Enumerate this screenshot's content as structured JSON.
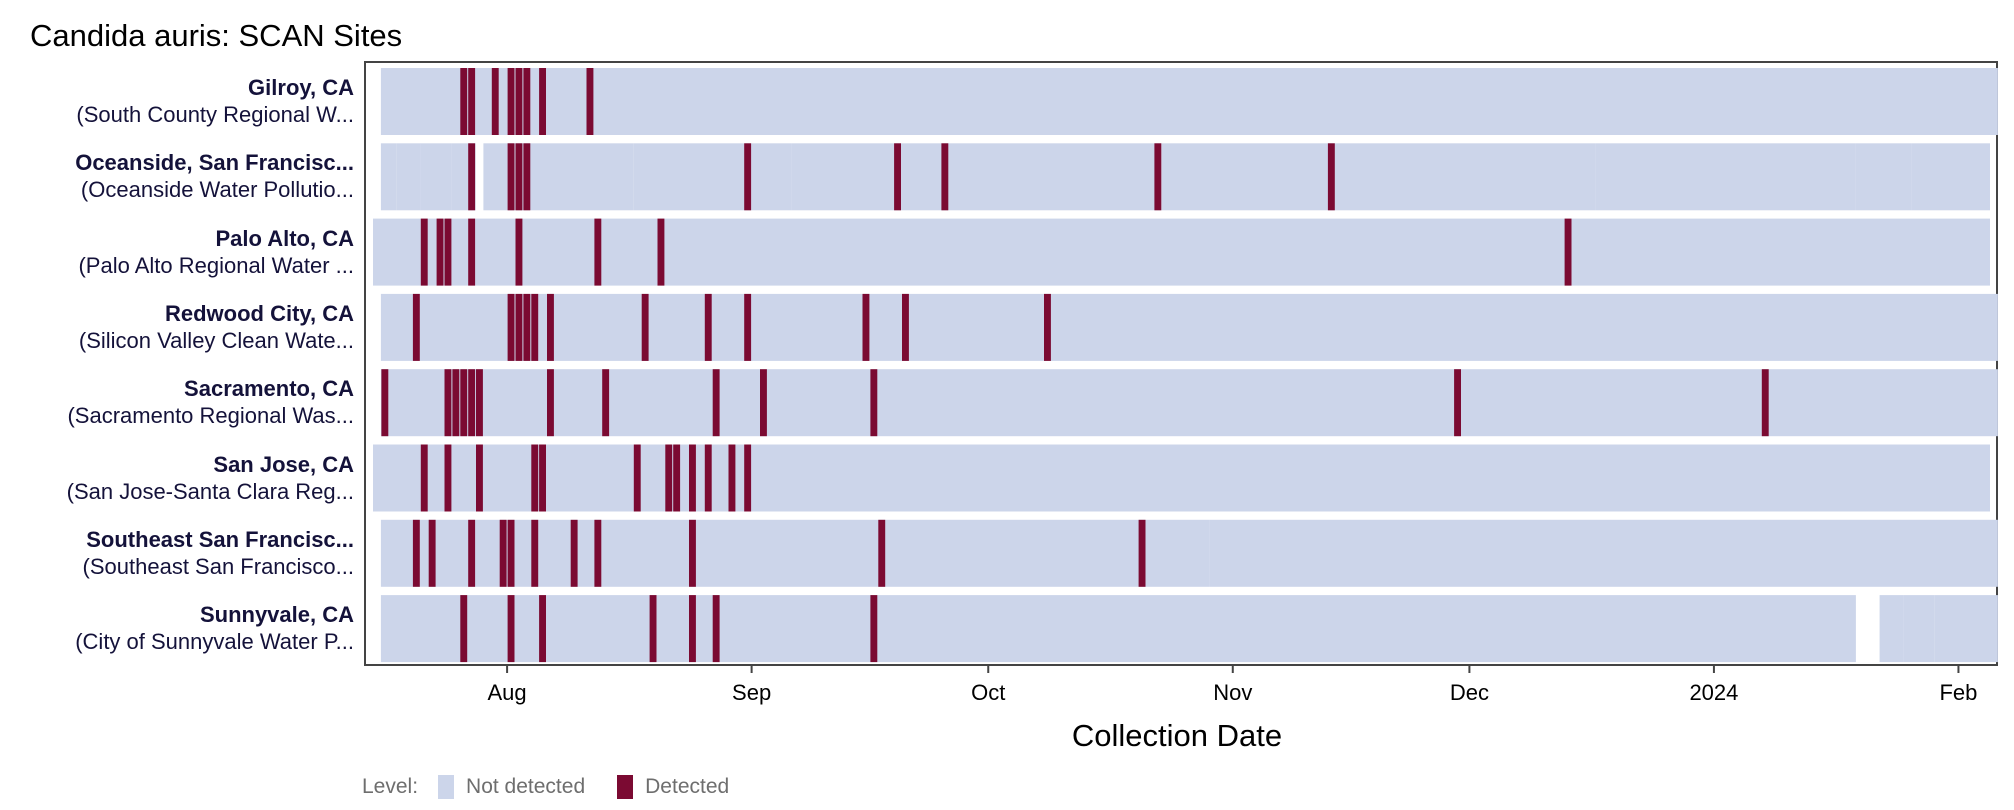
{
  "chart_data": {
    "type": "heatmap",
    "title": "Candida auris: SCAN Sites",
    "xlabel": "Collection Date",
    "ylabel": "",
    "x_range": [
      "2023-07-15",
      "2024-02-05"
    ],
    "x_ticks": [
      {
        "label": "Aug",
        "date": "2023-08-01"
      },
      {
        "label": "Sep",
        "date": "2023-09-01"
      },
      {
        "label": "Oct",
        "date": "2023-10-01"
      },
      {
        "label": "Nov",
        "date": "2023-11-01"
      },
      {
        "label": "Dec",
        "date": "2023-12-01"
      },
      {
        "label": "2024",
        "date": "2024-01-01"
      },
      {
        "label": "Feb",
        "date": "2024-02-01"
      }
    ],
    "legend": {
      "title": "Level:",
      "position": "bottom-left",
      "items": [
        {
          "label": "Not detected",
          "color": "#ccd5ea"
        },
        {
          "label": "Detected",
          "color": "#7b0a32"
        }
      ]
    },
    "sites": [
      {
        "name": "Gilroy, CA",
        "facility": "(South County Regional W...",
        "coverage": [
          [
            "2023-07-16",
            "2024-02-05"
          ]
        ],
        "detected": [
          "2023-07-26",
          "2023-07-27",
          "2023-07-30",
          "2023-08-01",
          "2023-08-02",
          "2023-08-03",
          "2023-08-05",
          "2023-08-11"
        ]
      },
      {
        "name": "Oceanside, San Francisc...",
        "facility": "(Oceanside Water Pollutio...",
        "coverage": [
          [
            "2023-07-16",
            "2023-07-17"
          ],
          [
            "2023-07-18",
            "2023-07-20"
          ],
          [
            "2023-07-21",
            "2023-07-24"
          ],
          [
            "2023-07-25",
            "2023-07-27"
          ],
          [
            "2023-07-29",
            "2023-08-16"
          ],
          [
            "2023-08-17",
            "2023-09-05"
          ],
          [
            "2023-09-06",
            "2023-10-22"
          ],
          [
            "2023-10-23",
            "2023-11-25"
          ],
          [
            "2023-11-26",
            "2023-12-16"
          ],
          [
            "2023-12-17",
            "2024-01-18"
          ],
          [
            "2024-01-19",
            "2024-01-25"
          ],
          [
            "2024-01-26",
            "2024-02-04"
          ]
        ],
        "detected": [
          "2023-07-27",
          "2023-08-01",
          "2023-08-02",
          "2023-08-03",
          "2023-08-31",
          "2023-09-19",
          "2023-09-25",
          "2023-10-22",
          "2023-11-13"
        ]
      },
      {
        "name": "Palo Alto, CA",
        "facility": "(Palo Alto Regional Water ...",
        "coverage": [
          [
            "2023-07-15",
            "2023-09-14"
          ],
          [
            "2023-09-15",
            "2024-02-04"
          ]
        ],
        "detected": [
          "2023-07-21",
          "2023-07-23",
          "2023-07-24",
          "2023-07-27",
          "2023-08-02",
          "2023-08-12",
          "2023-08-20",
          "2023-12-13"
        ]
      },
      {
        "name": "Redwood City, CA",
        "facility": "(Silicon Valley Clean Wate...",
        "coverage": [
          [
            "2023-07-16",
            "2024-02-05"
          ]
        ],
        "detected": [
          "2023-07-20",
          "2023-08-01",
          "2023-08-02",
          "2023-08-03",
          "2023-08-04",
          "2023-08-06",
          "2023-08-18",
          "2023-08-26",
          "2023-08-31",
          "2023-09-15",
          "2023-09-20",
          "2023-10-08"
        ]
      },
      {
        "name": "Sacramento, CA",
        "facility": "(Sacramento Regional Was...",
        "coverage": [
          [
            "2023-07-16",
            "2024-02-05"
          ]
        ],
        "detected": [
          "2023-07-16",
          "2023-07-24",
          "2023-07-25",
          "2023-07-26",
          "2023-07-27",
          "2023-07-28",
          "2023-08-06",
          "2023-08-13",
          "2023-08-27",
          "2023-09-02",
          "2023-09-16",
          "2023-11-29",
          "2024-01-07"
        ]
      },
      {
        "name": "San Jose, CA",
        "facility": "(San Jose-Santa Clara Reg...",
        "coverage": [
          [
            "2023-07-15",
            "2024-02-04"
          ]
        ],
        "detected": [
          "2023-07-21",
          "2023-07-24",
          "2023-07-28",
          "2023-08-04",
          "2023-08-05",
          "2023-08-17",
          "2023-08-21",
          "2023-08-22",
          "2023-08-24",
          "2023-08-26",
          "2023-08-29",
          "2023-08-31"
        ]
      },
      {
        "name": "Southeast San Francisc...",
        "facility": "(Southeast San Francisco...",
        "coverage": [
          [
            "2023-07-16",
            "2023-10-28"
          ],
          [
            "2023-10-29",
            "2024-02-05"
          ]
        ],
        "detected": [
          "2023-07-20",
          "2023-07-22",
          "2023-07-27",
          "2023-07-31",
          "2023-08-01",
          "2023-08-04",
          "2023-08-09",
          "2023-08-12",
          "2023-08-24",
          "2023-09-17",
          "2023-10-20"
        ]
      },
      {
        "name": "Sunnyvale, CA",
        "facility": "(City of Sunnyvale Water P...",
        "coverage": [
          [
            "2023-07-16",
            "2024-01-18"
          ],
          [
            "2024-01-22",
            "2024-01-24"
          ],
          [
            "2024-01-25",
            "2024-01-28"
          ],
          [
            "2024-01-29",
            "2024-02-05"
          ]
        ],
        "detected": [
          "2023-07-26",
          "2023-08-01",
          "2023-08-05",
          "2023-08-19",
          "2023-08-24",
          "2023-08-27",
          "2023-09-16"
        ]
      }
    ]
  }
}
